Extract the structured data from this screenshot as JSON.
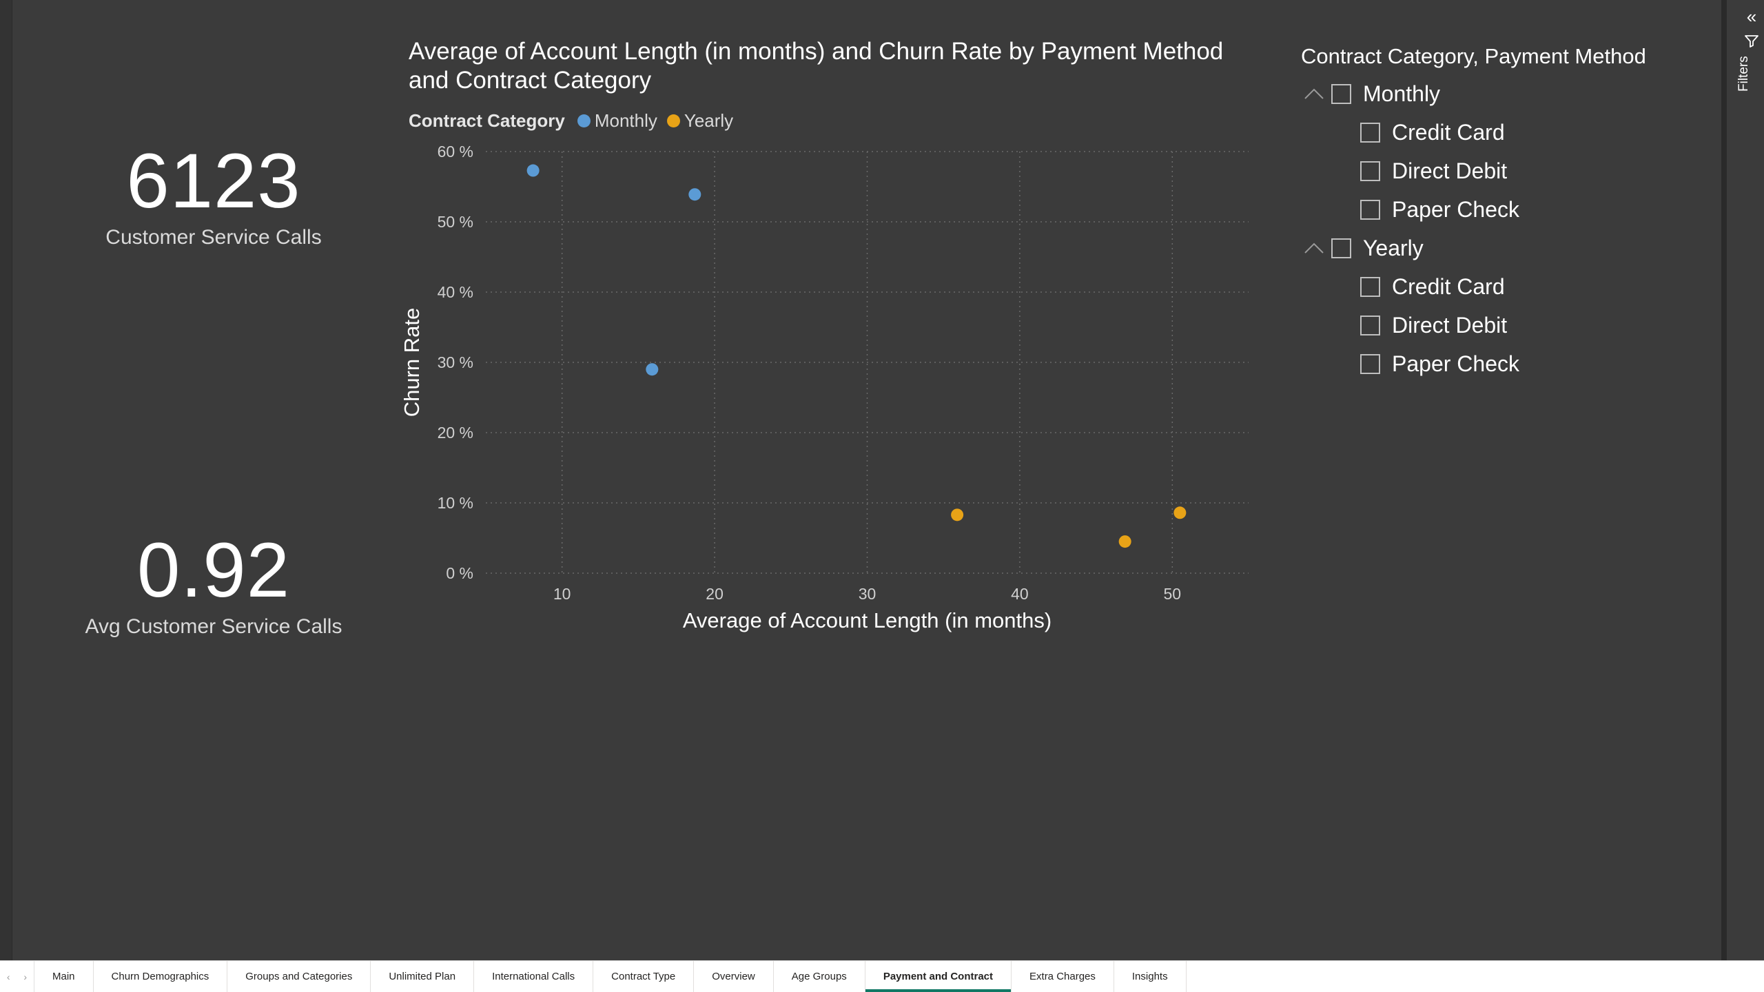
{
  "filters_pane": {
    "label": "Filters"
  },
  "kpis": [
    {
      "value": "6123",
      "label": "Customer Service Calls"
    },
    {
      "value": "0.92",
      "label": "Avg Customer Service Calls"
    }
  ],
  "chart_data": {
    "type": "scatter",
    "title": "Average of Account Length (in months) and Churn Rate by Payment Method and Contract Category",
    "legend_title": "Contract Category",
    "legend_position": "top-left",
    "xlabel": "Average of Account Length (in months)",
    "ylabel": "Churn Rate",
    "xlim": [
      5,
      55
    ],
    "ylim": [
      0,
      60
    ],
    "x_ticks": [
      10,
      20,
      30,
      40,
      50
    ],
    "y_ticks": [
      0,
      10,
      20,
      30,
      40,
      50,
      60
    ],
    "x_tick_labels": [
      "10",
      "20",
      "30",
      "40",
      "50"
    ],
    "y_tick_labels": [
      "0 %",
      "10 %",
      "20 %",
      "30 %",
      "40 %",
      "50 %",
      "60 %"
    ],
    "grid": true,
    "series": [
      {
        "name": "Monthly",
        "color": "#5b9bd5",
        "points": [
          {
            "x": 8.1,
            "y": 57.3
          },
          {
            "x": 18.7,
            "y": 53.9
          },
          {
            "x": 15.9,
            "y": 29.0
          }
        ]
      },
      {
        "name": "Yearly",
        "color": "#e8a317",
        "points": [
          {
            "x": 35.9,
            "y": 8.3
          },
          {
            "x": 46.9,
            "y": 4.5
          },
          {
            "x": 50.5,
            "y": 8.6
          }
        ]
      }
    ]
  },
  "slicer": {
    "header": "Contract Category, Payment Method",
    "groups": [
      {
        "label": "Monthly",
        "children": [
          "Credit Card",
          "Direct Debit",
          "Paper Check"
        ]
      },
      {
        "label": "Yearly",
        "children": [
          "Credit Card",
          "Direct Debit",
          "Paper Check"
        ]
      }
    ]
  },
  "tabs": [
    "Main",
    "Churn Demographics",
    "Groups and Categories",
    "Unlimited Plan",
    "International Calls",
    "Contract Type",
    "Overview",
    "Age Groups",
    "Payment and Contract",
    "Extra Charges",
    "Insights"
  ],
  "active_tab": "Payment and Contract",
  "tab_nav": {
    "prev": "‹",
    "next": "›"
  }
}
